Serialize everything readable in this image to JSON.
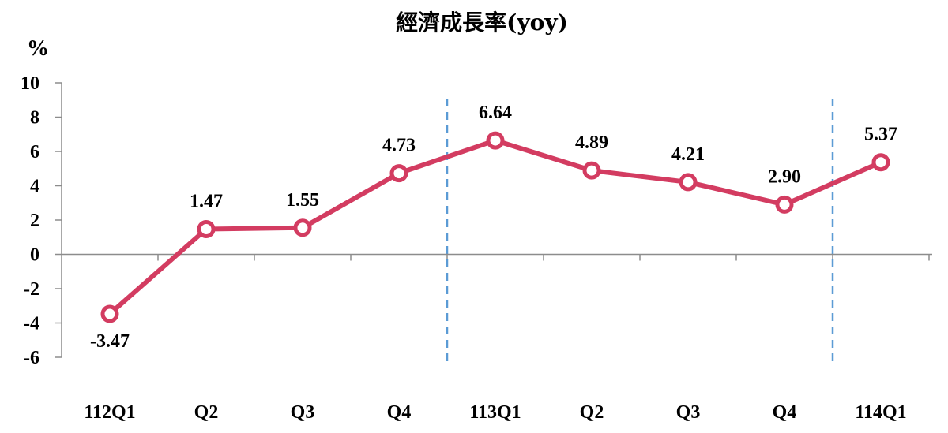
{
  "chart_data": {
    "type": "line",
    "title": "經濟成長率(yoy)",
    "ylabel": "%",
    "xlabel": "",
    "categories": [
      "112Q1",
      "Q2",
      "Q3",
      "Q4",
      "113Q1",
      "Q2",
      "Q3",
      "Q4",
      "114Q1"
    ],
    "series": [
      {
        "values": [
          -3.47,
          1.47,
          1.55,
          4.73,
          6.64,
          4.89,
          4.21,
          2.9,
          5.37
        ]
      }
    ],
    "data_labels": [
      "-3.47",
      "1.47",
      "1.55",
      "4.73",
      "6.64",
      "4.89",
      "4.21",
      "2.90",
      "5.37"
    ],
    "ylim": [
      -6,
      10
    ],
    "yticks": [
      10,
      8,
      6,
      4,
      2,
      0,
      -2,
      -4,
      -6
    ],
    "ytick_labels": [
      "10",
      "8",
      "6",
      "4",
      "2",
      "0",
      "-2",
      "-4",
      "-6"
    ],
    "year_dividers_after_index": [
      3.5,
      7.5
    ],
    "grid": false,
    "line_color": "#d33c61",
    "marker_fill": "#ffffff",
    "divider_color": "#5b9bd5"
  }
}
